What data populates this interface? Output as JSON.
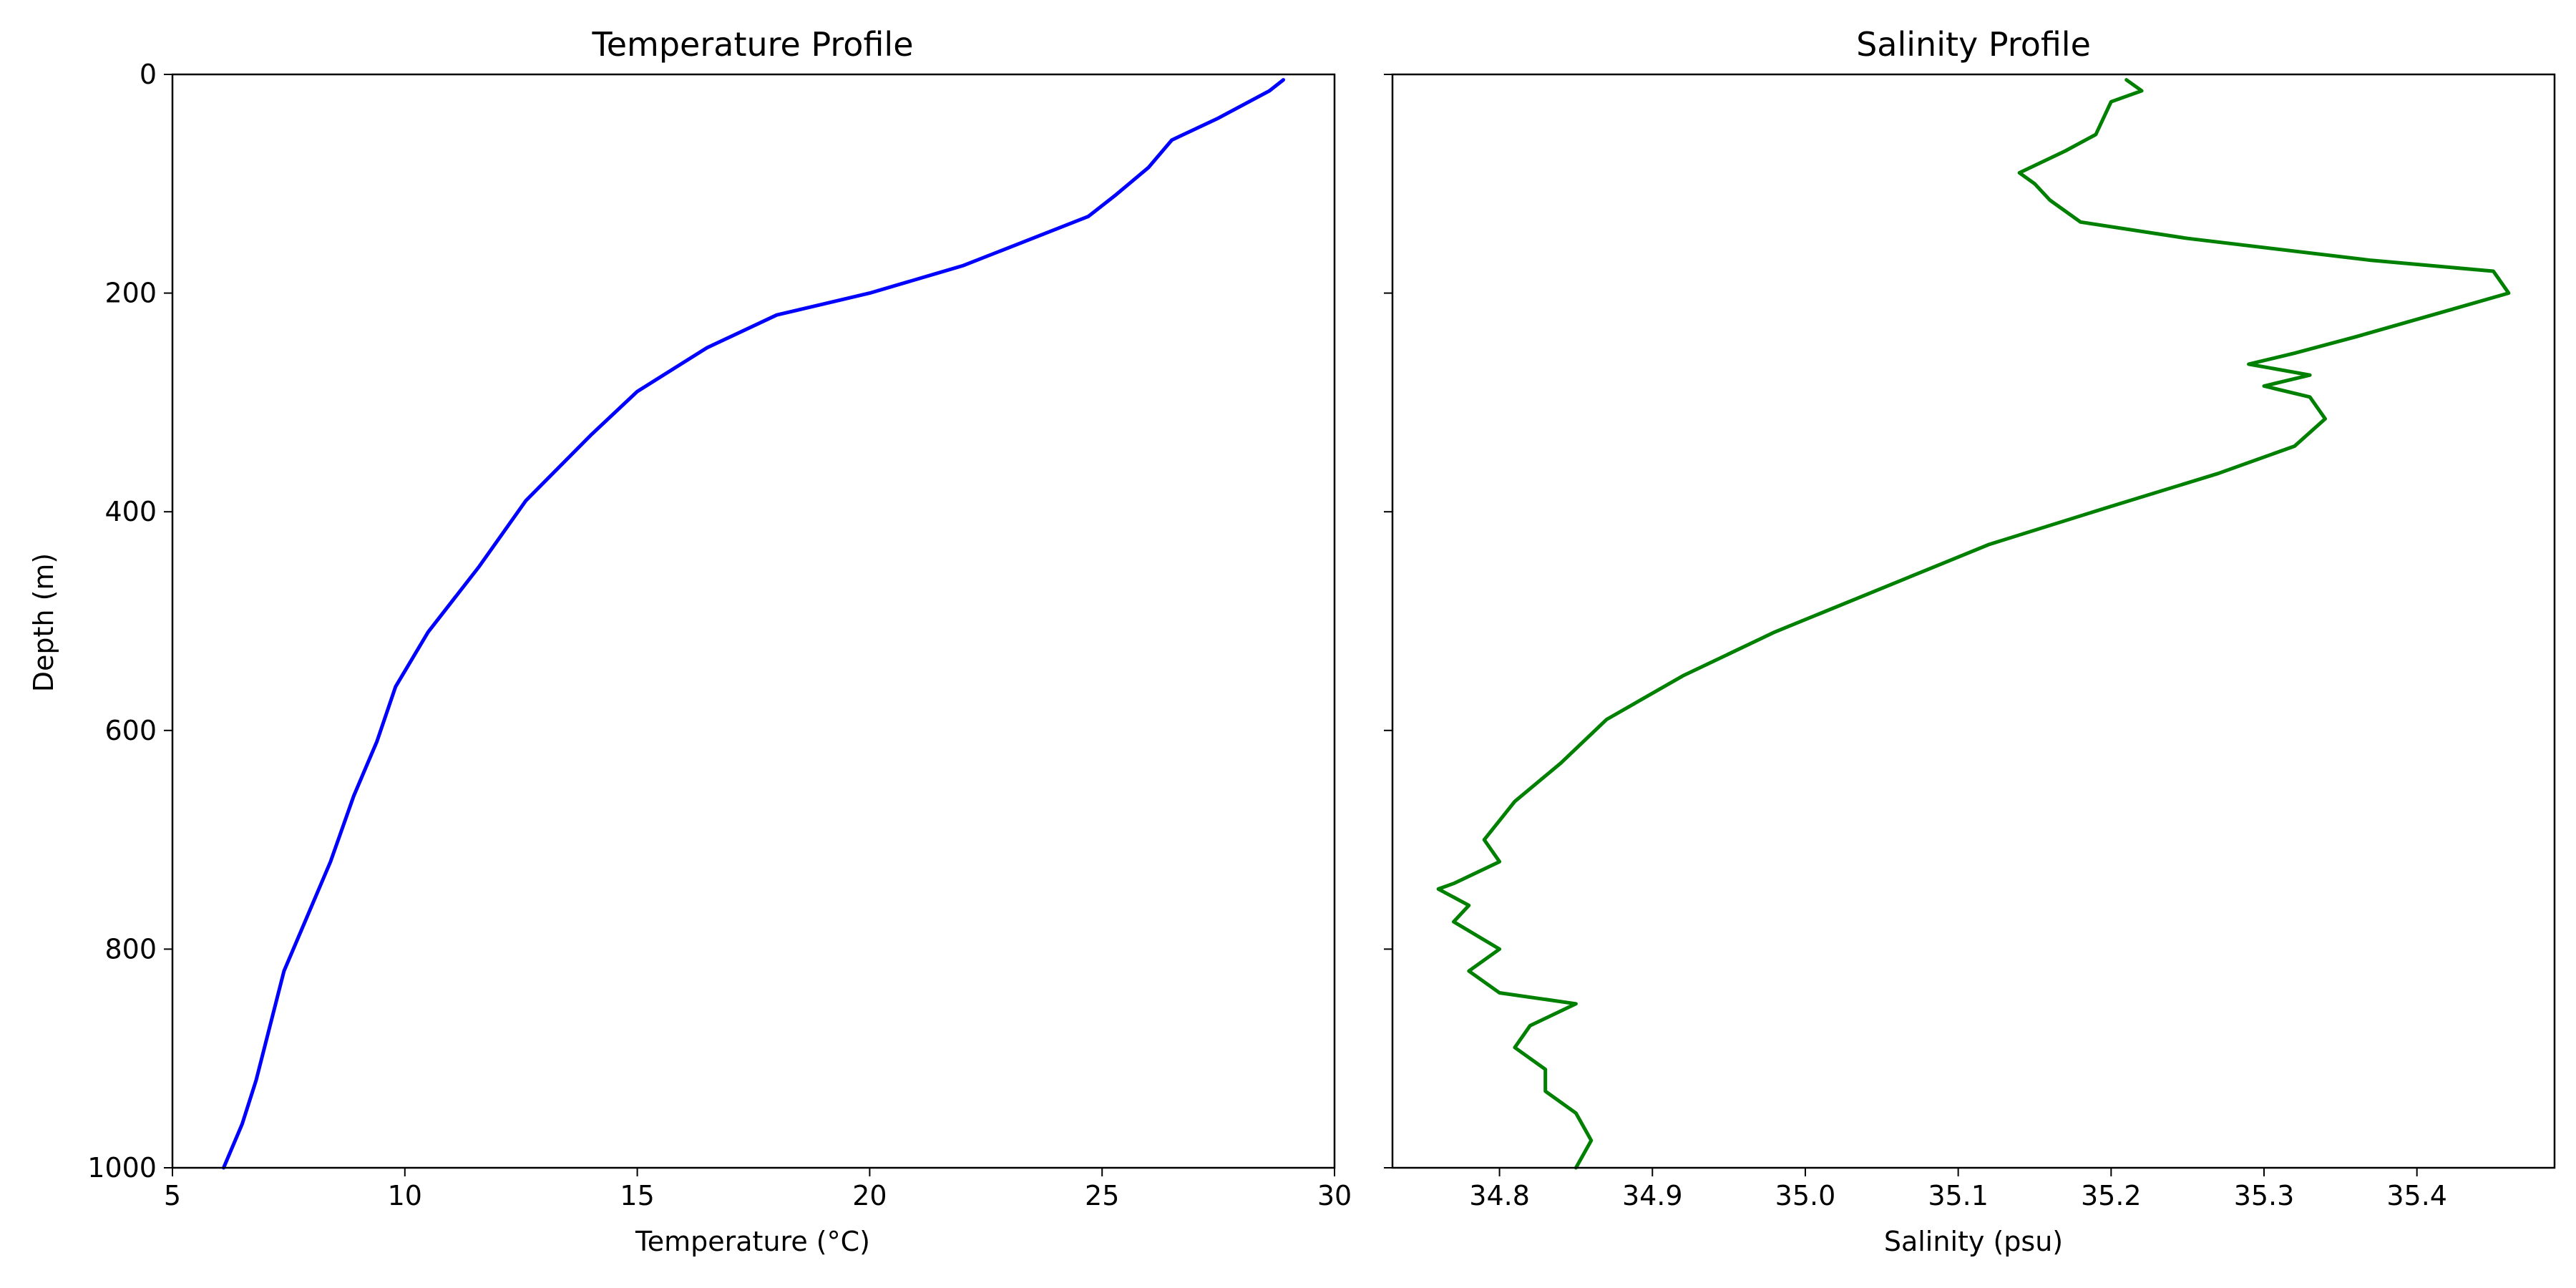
{
  "chart_data": [
    {
      "type": "line",
      "title": "Temperature Profile",
      "xlabel": "Temperature (°C)",
      "ylabel": "Depth (m)",
      "xlim": [
        5,
        30
      ],
      "ylim": [
        1000,
        0
      ],
      "y_inverted": true,
      "grid": false,
      "x_ticks": [
        5,
        10,
        15,
        20,
        25,
        30
      ],
      "y_ticks": [
        0,
        200,
        400,
        600,
        800,
        1000
      ],
      "color": "#0000ff",
      "series": [
        {
          "x": [
            28.9,
            28.6,
            27.5,
            26.5,
            26.0,
            25.3,
            24.7,
            23.5,
            22.0,
            20.0,
            18.0,
            16.5,
            15.0,
            14.0,
            12.6,
            11.6,
            10.5,
            9.8,
            9.4,
            8.9,
            8.4,
            7.9,
            7.4,
            7.1,
            6.8,
            6.5,
            6.1
          ],
          "y": [
            5,
            15,
            40,
            60,
            85,
            110,
            130,
            150,
            175,
            200,
            220,
            250,
            290,
            330,
            390,
            450,
            510,
            560,
            610,
            660,
            720,
            770,
            820,
            870,
            920,
            960,
            1000
          ]
        }
      ]
    },
    {
      "type": "line",
      "title": "Salinity Profile",
      "xlabel": "Salinity (psu)",
      "ylabel": "",
      "xlim": [
        34.73,
        35.49
      ],
      "ylim": [
        1000,
        0
      ],
      "y_inverted": true,
      "grid": false,
      "x_ticks": [
        34.8,
        34.9,
        35.0,
        35.1,
        35.2,
        35.3,
        35.4
      ],
      "y_ticks": [
        0,
        200,
        400,
        600,
        800,
        1000
      ],
      "color": "#008000",
      "series": [
        {
          "x": [
            35.21,
            35.22,
            35.2,
            35.19,
            35.17,
            35.14,
            35.15,
            35.16,
            35.18,
            35.25,
            35.37,
            35.45,
            35.46,
            35.41,
            35.36,
            35.32,
            35.29,
            35.33,
            35.3,
            35.33,
            35.34,
            35.32,
            35.27,
            35.2,
            35.12,
            35.05,
            34.98,
            34.92,
            34.87,
            34.84,
            34.81,
            34.79,
            34.8,
            34.77,
            34.76,
            34.78,
            34.77,
            34.8,
            34.78,
            34.8,
            34.85,
            34.82,
            34.81,
            34.83,
            34.83,
            34.85,
            34.86,
            34.85
          ],
          "y": [
            5,
            15,
            25,
            55,
            70,
            90,
            100,
            115,
            135,
            150,
            170,
            180,
            200,
            220,
            240,
            255,
            265,
            275,
            285,
            295,
            315,
            340,
            365,
            395,
            430,
            470,
            510,
            550,
            590,
            630,
            665,
            700,
            720,
            740,
            745,
            760,
            775,
            800,
            820,
            840,
            850,
            870,
            890,
            910,
            930,
            950,
            975,
            1000
          ]
        }
      ]
    }
  ]
}
